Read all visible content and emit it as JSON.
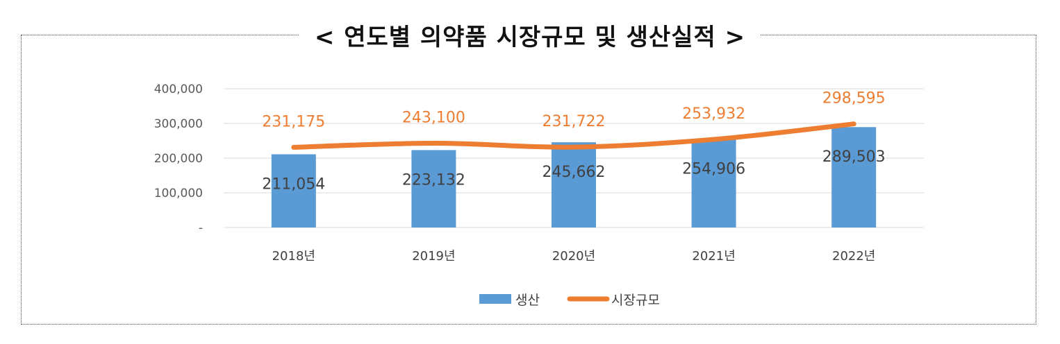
{
  "title": "< 연도별 의약품 시장규모 및 생산실적 >",
  "colors": {
    "bar": "#5B9BD5",
    "line": "#ED7D31",
    "grid": "#D9D9D9",
    "text": "#404040"
  },
  "chart_data": {
    "type": "bar",
    "title": "< 연도별 의약품 시장규모 및 생산실적 >",
    "categories": [
      "2018년",
      "2019년",
      "2020년",
      "2021년",
      "2022년"
    ],
    "series": [
      {
        "name": "생산",
        "type": "bar",
        "values": [
          211054,
          223132,
          245662,
          254906,
          289503
        ],
        "labels": [
          "211,054",
          "223,132",
          "245,662",
          "254,906",
          "289,503"
        ]
      },
      {
        "name": "시장규모",
        "type": "line",
        "values": [
          231175,
          243100,
          231722,
          253932,
          298595
        ],
        "labels": [
          "231,175",
          "243,100",
          "231,722",
          "253,932",
          "298,595"
        ]
      }
    ],
    "ylim": [
      0,
      400000
    ],
    "yticks": [
      0,
      100000,
      200000,
      300000,
      400000
    ],
    "ytick_labels": [
      "-",
      "100,000",
      "200,000",
      "300,000",
      "400,000"
    ],
    "grid": true,
    "legend": "bottom"
  }
}
